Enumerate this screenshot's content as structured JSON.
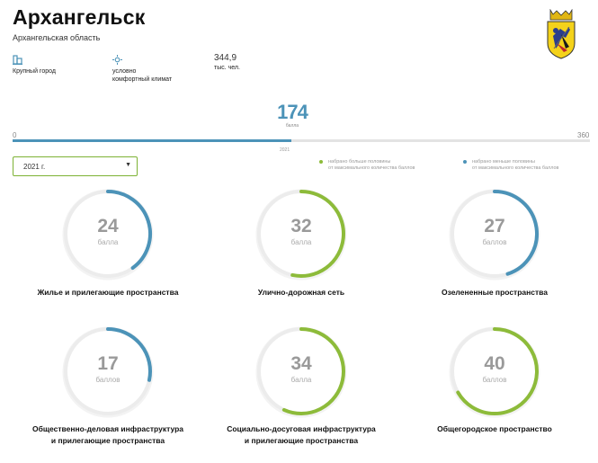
{
  "header": {
    "city": "Архангельск",
    "region": "Архангельская область"
  },
  "stats": {
    "city_type": "Крупный город",
    "climate_line1": "условно",
    "climate_line2": "комфортный климат",
    "population_value": "344,9",
    "population_unit": "тыс. чел."
  },
  "score": {
    "value": "174",
    "label": "балла",
    "scale_min": "0",
    "scale_max": "360",
    "fraction": 0.4833,
    "bar_marker": "2021"
  },
  "year_select": {
    "value": "2021 г."
  },
  "legend": {
    "above_half_line1": "набрано больше половины",
    "above_half_line2": "от максимального количества баллов",
    "below_half_line1": "набрано меньше половины",
    "below_half_line2": "от максимального количества баллов"
  },
  "categories": [
    {
      "value": "24",
      "unit": "балла",
      "label1": "Жилье и прилегающие пространства",
      "label2": "",
      "max": 60,
      "status": "below"
    },
    {
      "value": "32",
      "unit": "балла",
      "label1": "Улично-дорожная сеть",
      "label2": "",
      "max": 60,
      "status": "above"
    },
    {
      "value": "27",
      "unit": "баллов",
      "label1": "Озелененные пространства",
      "label2": "",
      "max": 60,
      "status": "below"
    },
    {
      "value": "17",
      "unit": "баллов",
      "label1": "Общественно-деловая инфраструктура",
      "label2": "и прилегающие пространства",
      "max": 60,
      "status": "below"
    },
    {
      "value": "34",
      "unit": "балла",
      "label1": "Социально-досуговая инфраструктура",
      "label2": "и прилегающие пространства",
      "max": 60,
      "status": "above"
    },
    {
      "value": "40",
      "unit": "баллов",
      "label1": "Общегородское пространство",
      "label2": "",
      "max": 60,
      "status": "above"
    }
  ],
  "colors": {
    "above": "#8dbb3a",
    "below": "#4c93b8",
    "track": "#ececec"
  }
}
